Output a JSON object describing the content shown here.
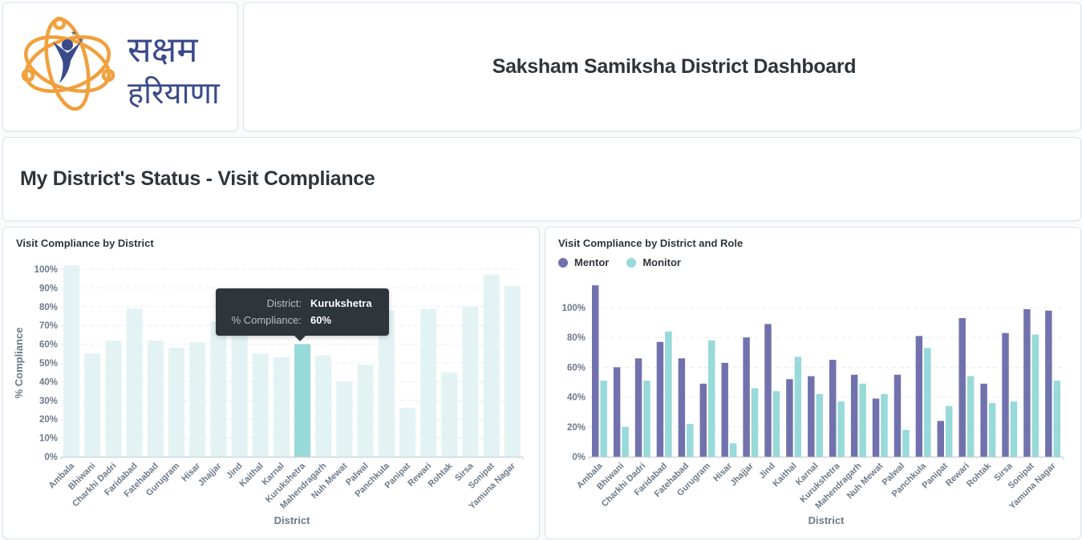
{
  "logo": {
    "line1": "सक्षम",
    "line2": "हरियाणा",
    "ring_color": "#f0a03c",
    "text_color": "#3a4a8c"
  },
  "header": {
    "title": "Saksham Samiksha District Dashboard"
  },
  "section": {
    "title": "My District's Status - Visit Compliance"
  },
  "tooltip": {
    "district_label": "District:",
    "district_value": "Kurukshetra",
    "compliance_label": "% Compliance:",
    "compliance_value": "60%"
  },
  "chart_data": [
    {
      "type": "bar",
      "title": "Visit Compliance by District",
      "xlabel": "District",
      "ylabel": "% Compliance",
      "ylim": [
        0,
        100
      ],
      "yticks": [
        "0%",
        "10%",
        "20%",
        "30%",
        "40%",
        "50%",
        "60%",
        "70%",
        "80%",
        "90%",
        "100%"
      ],
      "grid": true,
      "highlighted": "Kurukshetra",
      "color": "#e3f3f4",
      "highlight_color": "#98d9d9",
      "categories": [
        "Ambala",
        "Bhiwani",
        "Charkhi Dadri",
        "Faridabad",
        "Fatehabad",
        "Gurugram",
        "Hisar",
        "Jhajjar",
        "Jind",
        "Kaithal",
        "Karnal",
        "Kurukshetra",
        "Mahendragarh",
        "Nuh Mewat",
        "Palwal",
        "Panchkula",
        "Panipat",
        "Rewari",
        "Rohtak",
        "Sirsa",
        "Sonipat",
        "Yamuna Nagar"
      ],
      "values": [
        102,
        55,
        62,
        79,
        62,
        58,
        61,
        72,
        74,
        55,
        53,
        60,
        54,
        40,
        49,
        78,
        26,
        79,
        45,
        80,
        97,
        91
      ]
    },
    {
      "type": "bar",
      "title": "Visit Compliance by District and Role",
      "xlabel": "District",
      "ylabel": "",
      "ylim": [
        0,
        100
      ],
      "yticks": [
        "0%",
        "20%",
        "40%",
        "60%",
        "80%",
        "100%"
      ],
      "grid": true,
      "legend": "top-left",
      "categories": [
        "Ambala",
        "Bhiwani",
        "Charkhi Dadri",
        "Faridabad",
        "Fatehabad",
        "Gurugram",
        "Hisar",
        "Jhajjar",
        "Jind",
        "Kaithal",
        "Karnal",
        "Kurukshetra",
        "Mahendragarh",
        "Nuh Mewat",
        "Palwal",
        "Panchkula",
        "Panipat",
        "Rewari",
        "Rohtak",
        "Sirsa",
        "Sonipat",
        "Yamuna Nagar"
      ],
      "series": [
        {
          "name": "Mentor",
          "color": "#7172ad",
          "values": [
            115,
            60,
            66,
            77,
            66,
            49,
            63,
            80,
            89,
            52,
            54,
            65,
            55,
            39,
            55,
            81,
            24,
            93,
            49,
            83,
            99,
            98
          ]
        },
        {
          "name": "Monitor",
          "color": "#98d9d9",
          "values": [
            51,
            20,
            51,
            84,
            22,
            78,
            9,
            46,
            44,
            67,
            42,
            37,
            49,
            42,
            18,
            73,
            34,
            54,
            36,
            37,
            82,
            51
          ]
        }
      ]
    }
  ]
}
